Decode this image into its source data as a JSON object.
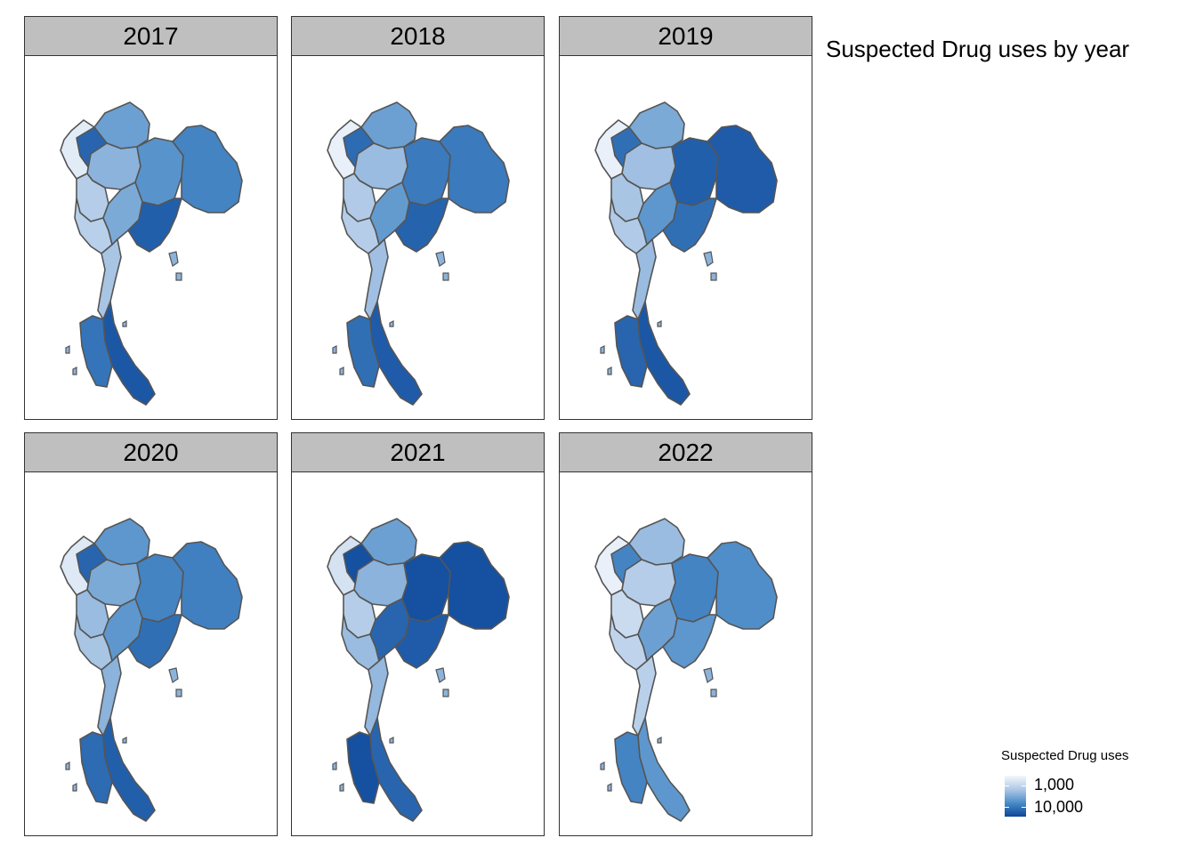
{
  "title": "Suspected Drug uses by year",
  "panels": [
    {
      "label": "2017",
      "shades": [
        0.55,
        0.08,
        0.85,
        0.45,
        0.3,
        0.62,
        0.28,
        0.5,
        0.7,
        0.88,
        0.35,
        0.78,
        0.92
      ]
    },
    {
      "label": "2018",
      "shades": [
        0.55,
        0.05,
        0.82,
        0.4,
        0.32,
        0.75,
        0.3,
        0.58,
        0.75,
        0.86,
        0.38,
        0.8,
        0.9
      ]
    },
    {
      "label": "2019",
      "shades": [
        0.5,
        0.05,
        0.8,
        0.38,
        0.35,
        0.88,
        0.32,
        0.6,
        0.9,
        0.8,
        0.4,
        0.85,
        0.92
      ]
    },
    {
      "label": "2020",
      "shades": [
        0.6,
        0.1,
        0.85,
        0.5,
        0.4,
        0.7,
        0.35,
        0.6,
        0.72,
        0.8,
        0.45,
        0.82,
        0.88
      ]
    },
    {
      "label": "2021",
      "shades": [
        0.55,
        0.15,
        0.95,
        0.45,
        0.3,
        0.95,
        0.4,
        0.85,
        0.95,
        0.9,
        0.42,
        0.95,
        0.85
      ]
    },
    {
      "label": "2022",
      "shades": [
        0.4,
        0.05,
        0.7,
        0.3,
        0.2,
        0.7,
        0.25,
        0.55,
        0.65,
        0.6,
        0.28,
        0.7,
        0.6
      ]
    }
  ],
  "legend": {
    "title": "Suspected Drug uses",
    "labels": [
      "1,000",
      "10,000"
    ],
    "colors": [
      "#f3f7fc",
      "#aec8e6",
      "#4a8bc7",
      "#0c469a"
    ]
  }
}
